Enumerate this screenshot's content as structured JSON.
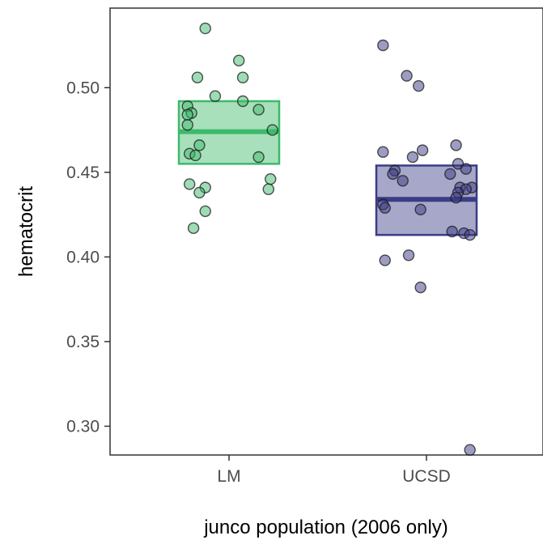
{
  "chart_data": {
    "type": "box-with-jitter",
    "title": "",
    "xlabel": "junco population (2006 only)",
    "ylabel": "hematocrit",
    "categories": [
      "LM",
      "UCSD"
    ],
    "ylim": [
      0.283,
      0.547
    ],
    "yticks": [
      0.3,
      0.35,
      0.4,
      0.45,
      0.5
    ],
    "ytick_labels": [
      "0.30",
      "0.35",
      "0.40",
      "0.45",
      "0.50"
    ],
    "grid": false,
    "legend": "none",
    "groups": [
      {
        "category": "LM",
        "color": "#3dba6b",
        "box": {
          "lower": 0.455,
          "median": 0.474,
          "upper": 0.492
        },
        "points": [
          {
            "x": 0.88,
            "y": 0.535
          },
          {
            "x": 1.05,
            "y": 0.516
          },
          {
            "x": 1.07,
            "y": 0.506
          },
          {
            "x": 0.84,
            "y": 0.506
          },
          {
            "x": 0.93,
            "y": 0.495
          },
          {
            "x": 1.07,
            "y": 0.492
          },
          {
            "x": 0.79,
            "y": 0.489
          },
          {
            "x": 0.81,
            "y": 0.485
          },
          {
            "x": 0.79,
            "y": 0.484
          },
          {
            "x": 1.15,
            "y": 0.487
          },
          {
            "x": 0.79,
            "y": 0.478
          },
          {
            "x": 1.22,
            "y": 0.475
          },
          {
            "x": 0.85,
            "y": 0.466
          },
          {
            "x": 0.8,
            "y": 0.461
          },
          {
            "x": 0.83,
            "y": 0.46
          },
          {
            "x": 1.15,
            "y": 0.459
          },
          {
            "x": 1.21,
            "y": 0.446
          },
          {
            "x": 0.8,
            "y": 0.443
          },
          {
            "x": 0.88,
            "y": 0.441
          },
          {
            "x": 0.85,
            "y": 0.438
          },
          {
            "x": 1.2,
            "y": 0.44
          },
          {
            "x": 0.88,
            "y": 0.427
          },
          {
            "x": 0.82,
            "y": 0.417
          }
        ]
      },
      {
        "category": "UCSD",
        "color": "#3b3b87",
        "box": {
          "lower": 0.413,
          "median": 0.434,
          "upper": 0.454
        },
        "points": [
          {
            "x": 1.78,
            "y": 0.525
          },
          {
            "x": 1.9,
            "y": 0.507
          },
          {
            "x": 1.96,
            "y": 0.501
          },
          {
            "x": 2.15,
            "y": 0.466
          },
          {
            "x": 1.98,
            "y": 0.463
          },
          {
            "x": 1.78,
            "y": 0.462
          },
          {
            "x": 1.93,
            "y": 0.459
          },
          {
            "x": 2.16,
            "y": 0.455
          },
          {
            "x": 1.84,
            "y": 0.451
          },
          {
            "x": 2.2,
            "y": 0.452
          },
          {
            "x": 1.83,
            "y": 0.449
          },
          {
            "x": 2.12,
            "y": 0.449
          },
          {
            "x": 1.88,
            "y": 0.445
          },
          {
            "x": 2.17,
            "y": 0.441
          },
          {
            "x": 2.23,
            "y": 0.441
          },
          {
            "x": 2.2,
            "y": 0.44
          },
          {
            "x": 2.16,
            "y": 0.438
          },
          {
            "x": 2.15,
            "y": 0.435
          },
          {
            "x": 1.78,
            "y": 0.431
          },
          {
            "x": 1.79,
            "y": 0.429
          },
          {
            "x": 1.97,
            "y": 0.428
          },
          {
            "x": 2.13,
            "y": 0.415
          },
          {
            "x": 2.19,
            "y": 0.414
          },
          {
            "x": 2.22,
            "y": 0.413
          },
          {
            "x": 1.91,
            "y": 0.401
          },
          {
            "x": 1.79,
            "y": 0.398
          },
          {
            "x": 1.97,
            "y": 0.382
          },
          {
            "x": 2.22,
            "y": 0.286
          }
        ]
      }
    ]
  }
}
